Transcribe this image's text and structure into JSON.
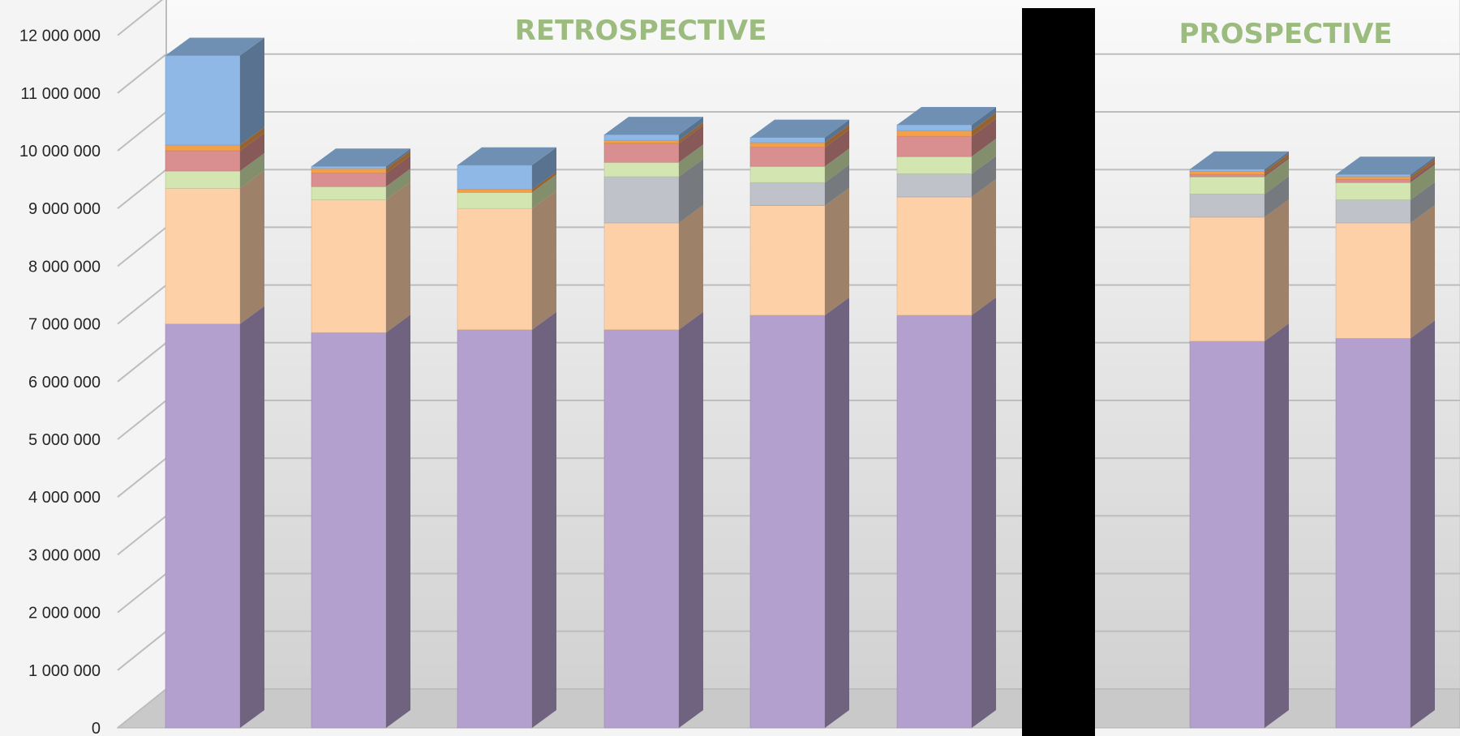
{
  "chart_data": {
    "type": "bar",
    "stacked": true,
    "three_d": true,
    "ylim": [
      0,
      12000000
    ],
    "y_ticks": [
      "0",
      "1 000 000",
      "2 000 000",
      "3 000 000",
      "4 000 000",
      "5 000 000",
      "6 000 000",
      "7 000 000",
      "8 000 000",
      "9 000 000",
      "10 000 000",
      "11 000 000",
      "12 000 000"
    ],
    "y_tick_values": [
      0,
      1000000,
      2000000,
      3000000,
      4000000,
      5000000,
      6000000,
      7000000,
      8000000,
      9000000,
      10000000,
      11000000,
      12000000
    ],
    "grid": true,
    "legend": "none",
    "section_titles": {
      "retrospective": "RETROSPECTIVE",
      "prospective": "PROSPECTIVE"
    },
    "segment_colors": [
      "#b4a0ce",
      "#fdd0a8",
      "#bfc3c9",
      "#d3e5b0",
      "#d98f8f",
      "#f2a04c",
      "#8fb8e6"
    ],
    "bars": [
      {
        "section": "retrospective",
        "segments": [
          7000000,
          2350000,
          0,
          300000,
          350000,
          100000,
          1550000
        ]
      },
      {
        "section": "retrospective",
        "segments": [
          6850000,
          2300000,
          0,
          230000,
          230000,
          80000,
          40000
        ]
      },
      {
        "section": "retrospective",
        "segments": [
          6900000,
          2100000,
          0,
          280000,
          0,
          50000,
          420000
        ]
      },
      {
        "section": "retrospective",
        "segments": [
          6900000,
          1850000,
          800000,
          250000,
          330000,
          50000,
          100000
        ]
      },
      {
        "section": "retrospective",
        "segments": [
          7150000,
          1900000,
          400000,
          280000,
          330000,
          80000,
          90000
        ]
      },
      {
        "section": "retrospective",
        "segments": [
          7150000,
          2050000,
          400000,
          300000,
          350000,
          100000,
          100000
        ]
      },
      {
        "section": "prospective",
        "segments": [
          6700000,
          2150000,
          400000,
          300000,
          40000,
          50000,
          40000
        ]
      },
      {
        "section": "prospective",
        "segments": [
          6750000,
          2000000,
          400000,
          300000,
          50000,
          50000,
          40000
        ]
      }
    ],
    "redaction_color": "#000000"
  }
}
